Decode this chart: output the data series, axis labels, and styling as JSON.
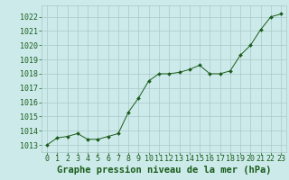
{
  "x": [
    0,
    1,
    2,
    3,
    4,
    5,
    6,
    7,
    8,
    9,
    10,
    11,
    12,
    13,
    14,
    15,
    16,
    17,
    18,
    19,
    20,
    21,
    22,
    23
  ],
  "y": [
    1013.0,
    1013.5,
    1013.6,
    1013.8,
    1013.4,
    1013.4,
    1013.6,
    1013.8,
    1015.3,
    1016.3,
    1017.5,
    1018.0,
    1018.0,
    1018.1,
    1018.3,
    1018.6,
    1018.0,
    1018.0,
    1018.2,
    1019.3,
    1020.0,
    1021.1,
    1022.0,
    1022.2
  ],
  "line_color": "#1a5c1a",
  "marker": "D",
  "marker_size": 2.0,
  "bg_color": "#cceaea",
  "grid_color": "#aac8c8",
  "xlabel": "Graphe pression niveau de la mer (hPa)",
  "xlabel_color": "#1a5c1a",
  "xlabel_fontsize": 7.5,
  "tick_color": "#1a5c1a",
  "tick_fontsize": 6.0,
  "ylim": [
    1012.5,
    1022.8
  ],
  "yticks": [
    1013,
    1014,
    1015,
    1016,
    1017,
    1018,
    1019,
    1020,
    1021,
    1022
  ],
  "xlim": [
    -0.5,
    23.5
  ],
  "xticks": [
    0,
    1,
    2,
    3,
    4,
    5,
    6,
    7,
    8,
    9,
    10,
    11,
    12,
    13,
    14,
    15,
    16,
    17,
    18,
    19,
    20,
    21,
    22,
    23
  ]
}
